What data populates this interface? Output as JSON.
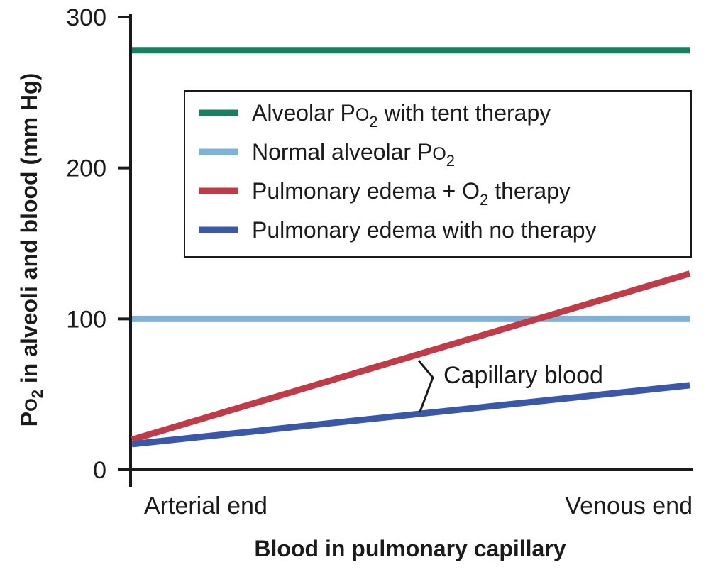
{
  "chart_data": {
    "type": "line",
    "title": "",
    "xlabel": "Blood in pulmonary capillary",
    "ylabel_parts": [
      "P",
      "O",
      "2",
      " in alveoli and blood (mm Hg)"
    ],
    "categories": [
      "Arterial end",
      "Venous end"
    ],
    "ylim": [
      0,
      300
    ],
    "yticks": [
      "0",
      "100",
      "200",
      "300"
    ],
    "series": [
      {
        "name": "Alveolar PO2 with tent therapy",
        "label_parts": [
          "Alveolar P",
          "O",
          "2",
          " with tent therapy"
        ],
        "color": "#1a7f62",
        "values": [
          278,
          278
        ]
      },
      {
        "name": "Normal alveolar PO2",
        "label_parts": [
          "Normal alveolar P",
          "O",
          "2",
          ""
        ],
        "color": "#7bb4d8",
        "values": [
          100,
          100
        ]
      },
      {
        "name": "Pulmonary edema + O2 therapy",
        "label_parts": [
          "Pulmonary edema + ",
          "O",
          "2",
          " therapy"
        ],
        "color": "#bf3b47",
        "values": [
          20,
          130
        ]
      },
      {
        "name": "Pulmonary edema with no therapy",
        "label_parts": [
          "Pulmonary edema with no therapy",
          "",
          "",
          ""
        ],
        "color": "#3b57a7",
        "values": [
          17,
          56
        ]
      }
    ],
    "annotation": "Capillary blood"
  }
}
